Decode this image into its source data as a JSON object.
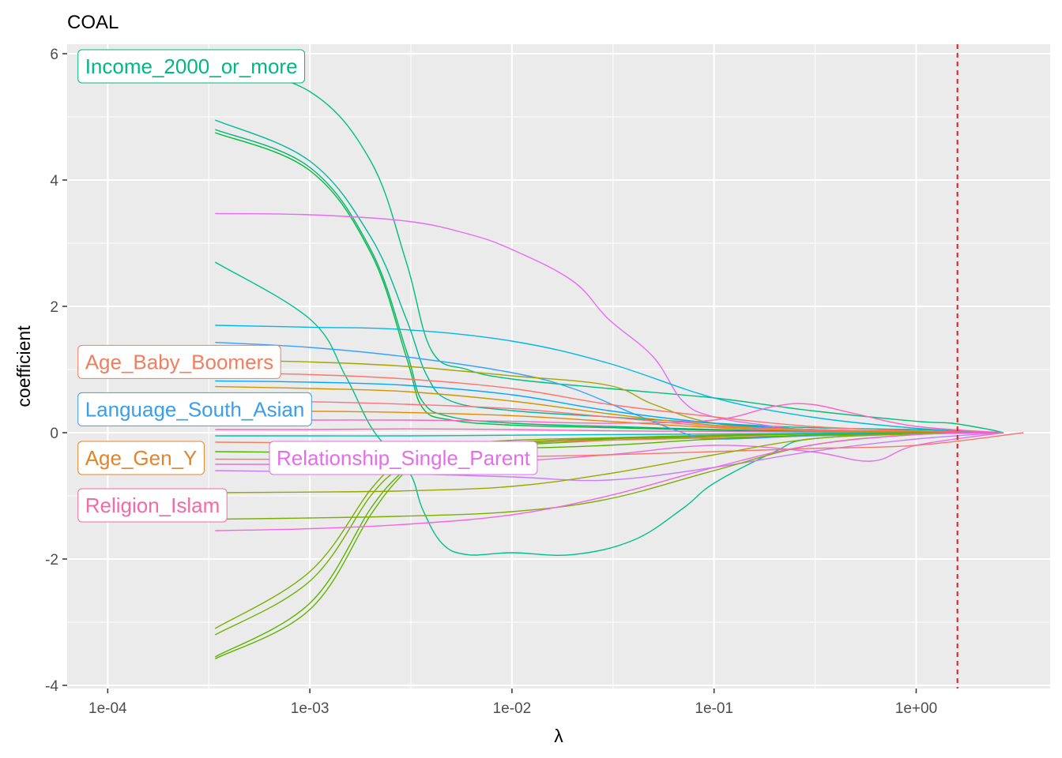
{
  "chart_data": {
    "type": "line",
    "title": "COAL",
    "xlabel": "λ",
    "ylabel": "coefficient",
    "x_scale": "log10",
    "xlim": [
      6.3e-05,
      4.6
    ],
    "ylim": [
      -4.05,
      6.15
    ],
    "x_ticks": [
      {
        "value": 0.0001,
        "label": "1e-04"
      },
      {
        "value": 0.001,
        "label": "1e-03"
      },
      {
        "value": 0.01,
        "label": "1e-02"
      },
      {
        "value": 0.1,
        "label": "1e-01"
      },
      {
        "value": 1,
        "label": "1e+00"
      }
    ],
    "y_ticks": [
      {
        "value": -4,
        "label": "-4"
      },
      {
        "value": -2,
        "label": "-2"
      },
      {
        "value": 0,
        "label": "0"
      },
      {
        "value": 2,
        "label": "2"
      },
      {
        "value": 4,
        "label": "4"
      },
      {
        "value": 6,
        "label": "6"
      }
    ],
    "grid": true,
    "legend": "none",
    "reference_line": {
      "x": 1.6,
      "color": "#e41a1c",
      "style": "dashed"
    },
    "labels": [
      {
        "text": "Income_2000_or_more",
        "color": "#00b881",
        "x": 7e-05,
        "y": 5.8
      },
      {
        "text": "Age_Baby_Boomers",
        "color": "#f17e5e",
        "x": 7e-05,
        "y": 1.12
      },
      {
        "text": "Language_South_Asian",
        "color": "#3a9ee8",
        "x": 7e-05,
        "y": 0.37
      },
      {
        "text": "Age_Gen_Y",
        "color": "#e2842a",
        "x": 7e-05,
        "y": -0.4
      },
      {
        "text": "Relationship_Single_Parent",
        "color": "#e46ee8",
        "x": 0.00062,
        "y": -0.4
      },
      {
        "text": "Religion_Islam",
        "color": "#f46aa4",
        "x": 7e-05,
        "y": -1.15
      }
    ],
    "series": [
      {
        "color": "#00bf7d",
        "x": [
          0.00034,
          0.001,
          0.002,
          0.003,
          0.004,
          0.006,
          0.01,
          0.03,
          0.1,
          0.3,
          1,
          1.5,
          2.3,
          2.7
        ],
        "values": [
          5.85,
          5.4,
          4.3,
          2.7,
          1.3,
          1.0,
          0.85,
          0.7,
          0.55,
          0.35,
          0.18,
          0.15,
          0.05,
          0
        ]
      },
      {
        "color": "#00b895",
        "x": [
          0.00034,
          0.001,
          0.002,
          0.003,
          0.0038,
          0.005,
          0.01,
          0.03,
          0.1,
          0.3,
          1,
          1.5,
          2.3,
          2.7
        ],
        "values": [
          4.95,
          4.3,
          3.1,
          1.8,
          0.9,
          0.5,
          0.35,
          0.25,
          0.15,
          0.08,
          0.05,
          0.03,
          0.01,
          0
        ]
      },
      {
        "color": "#00b47a",
        "x": [
          0.00034,
          0.001,
          0.002,
          0.003,
          0.0036,
          0.005,
          0.01,
          0.03,
          0.1,
          0.3,
          1,
          2.3,
          2.7
        ],
        "values": [
          4.8,
          4.2,
          2.9,
          1.3,
          0.5,
          0.25,
          0.15,
          0.1,
          0.05,
          0.02,
          0.01,
          0,
          0
        ]
      },
      {
        "color": "#00ba38",
        "x": [
          0.00034,
          0.001,
          0.002,
          0.003,
          0.0036,
          0.005,
          0.01,
          0.03,
          0.1,
          0.3,
          1,
          2.3,
          2.7
        ],
        "values": [
          4.75,
          4.15,
          2.85,
          1.2,
          0.4,
          0.2,
          0.12,
          0.08,
          0.04,
          0.02,
          0.01,
          0,
          0
        ]
      },
      {
        "color": "#00c08b",
        "x": [
          0.00034,
          0.001,
          0.0015,
          0.002,
          0.0026,
          0.0032,
          0.0036,
          0.0045,
          0.006,
          0.01,
          0.02,
          0.04,
          0.07,
          0.1,
          0.2,
          0.3,
          1,
          2.7
        ],
        "values": [
          2.7,
          1.8,
          0.9,
          0.1,
          -0.35,
          -0.7,
          -1.2,
          -1.75,
          -1.93,
          -1.9,
          -1.93,
          -1.7,
          -1.2,
          -0.8,
          -0.3,
          -0.1,
          -0.02,
          0
        ]
      },
      {
        "color": "#7cae00",
        "x": [
          0.00034,
          0.001,
          0.002,
          0.0028,
          0.0035,
          0.005,
          0.01,
          0.03,
          0.1,
          0.3,
          1,
          2.7
        ],
        "values": [
          -3.1,
          -2.2,
          -0.9,
          -0.45,
          -0.3,
          -0.2,
          -0.12,
          -0.08,
          -0.04,
          -0.02,
          -0.01,
          0
        ]
      },
      {
        "color": "#6fb000",
        "x": [
          0.00034,
          0.001,
          0.002,
          0.0028,
          0.0035,
          0.005,
          0.01,
          0.03,
          0.1,
          0.3,
          1,
          2.7
        ],
        "values": [
          -3.2,
          -2.35,
          -1.0,
          -0.55,
          -0.35,
          -0.22,
          -0.15,
          -0.09,
          -0.05,
          -0.02,
          -0.01,
          0
        ]
      },
      {
        "color": "#5bb300",
        "x": [
          0.00034,
          0.001,
          0.002,
          0.0028,
          0.0035,
          0.005,
          0.01,
          0.03,
          0.1,
          0.3,
          1,
          2.7
        ],
        "values": [
          -3.55,
          -2.7,
          -1.2,
          -0.65,
          -0.4,
          -0.25,
          -0.18,
          -0.1,
          -0.05,
          -0.02,
          -0.01,
          0
        ]
      },
      {
        "color": "#64b200",
        "x": [
          0.00034,
          0.001,
          0.002,
          0.0028,
          0.0035,
          0.005,
          0.01,
          0.03,
          0.1,
          0.3,
          1,
          2.7
        ],
        "values": [
          -3.58,
          -2.8,
          -1.3,
          -0.7,
          -0.45,
          -0.28,
          -0.2,
          -0.12,
          -0.06,
          -0.02,
          -0.01,
          0
        ]
      },
      {
        "color": "#e76bf3",
        "x": [
          0.00034,
          0.001,
          0.003,
          0.006,
          0.01,
          0.02,
          0.03,
          0.05,
          0.07,
          0.1,
          0.2,
          0.3,
          1,
          2.7
        ],
        "values": [
          3.47,
          3.45,
          3.35,
          3.15,
          2.9,
          2.4,
          1.8,
          1.2,
          0.5,
          0.25,
          0.1,
          0.05,
          0.02,
          0
        ]
      },
      {
        "color": "#00b8e7",
        "x": [
          0.00034,
          0.001,
          0.003,
          0.01,
          0.03,
          0.1,
          0.3,
          1,
          2.7
        ],
        "values": [
          1.7,
          1.67,
          1.63,
          1.45,
          1.1,
          0.55,
          0.25,
          0.07,
          0
        ]
      },
      {
        "color": "#35a2ff",
        "x": [
          0.00034,
          0.001,
          0.003,
          0.01,
          0.02,
          0.04,
          0.07,
          0.1,
          0.3,
          1,
          2.7
        ],
        "values": [
          1.43,
          1.35,
          1.2,
          0.95,
          0.7,
          0.3,
          0.0,
          -0.1,
          -0.05,
          -0.02,
          0
        ]
      },
      {
        "color": "#a3a500",
        "x": [
          0.00034,
          0.001,
          0.003,
          0.01,
          0.03,
          0.05,
          0.1,
          0.3,
          1,
          2.7
        ],
        "values": [
          1.15,
          1.12,
          1.05,
          0.9,
          0.75,
          0.45,
          0.15,
          0.05,
          0.02,
          0
        ]
      },
      {
        "color": "#f8766d",
        "x": [
          0.00034,
          0.001,
          0.003,
          0.01,
          0.03,
          0.1,
          0.3,
          1,
          2.7
        ],
        "values": [
          0.95,
          0.92,
          0.85,
          0.7,
          0.45,
          0.25,
          0.1,
          0.03,
          0
        ]
      },
      {
        "color": "#00a9ff",
        "x": [
          0.00034,
          0.001,
          0.003,
          0.01,
          0.03,
          0.1,
          0.3,
          1,
          2.7
        ],
        "values": [
          0.82,
          0.8,
          0.75,
          0.6,
          0.35,
          0.15,
          0.05,
          0.01,
          0
        ]
      },
      {
        "color": "#c99800",
        "x": [
          0.00034,
          0.001,
          0.003,
          0.01,
          0.03,
          0.1,
          0.3,
          1,
          2.7
        ],
        "values": [
          0.73,
          0.7,
          0.65,
          0.5,
          0.3,
          0.12,
          0.05,
          0.01,
          0
        ]
      },
      {
        "color": "#fc717f",
        "x": [
          0.00034,
          0.001,
          0.003,
          0.01,
          0.03,
          0.1,
          0.3,
          1,
          2.7
        ],
        "values": [
          0.5,
          0.49,
          0.45,
          0.38,
          0.25,
          0.1,
          0.05,
          0.01,
          0
        ]
      },
      {
        "color": "#e58700",
        "x": [
          0.00034,
          0.001,
          0.003,
          0.01,
          0.03,
          0.1,
          0.3,
          1,
          2.7
        ],
        "values": [
          0.35,
          0.34,
          0.32,
          0.27,
          0.18,
          0.08,
          0.03,
          0.01,
          0
        ]
      },
      {
        "color": "#ff61c3",
        "x": [
          0.00034,
          0.001,
          0.003,
          0.01,
          0.03,
          0.1,
          0.2,
          0.3,
          0.5,
          1,
          2.7
        ],
        "values": [
          0.2,
          0.2,
          0.2,
          0.18,
          0.15,
          0.2,
          0.42,
          0.45,
          0.3,
          0.1,
          0
        ]
      },
      {
        "color": "#ff62bc",
        "x": [
          0.00034,
          0.001,
          0.003,
          0.01,
          0.03,
          0.1,
          0.3,
          1,
          2.7
        ],
        "values": [
          0.05,
          0.05,
          0.06,
          0.05,
          0.03,
          0.02,
          0.01,
          0.0,
          0
        ]
      },
      {
        "color": "#00bfc4",
        "x": [
          0.00034,
          0.001,
          0.003,
          0.01,
          0.03,
          0.1,
          0.3,
          1,
          2.7
        ],
        "values": [
          -0.05,
          -0.05,
          -0.05,
          -0.04,
          -0.03,
          -0.02,
          -0.01,
          0.0,
          0
        ]
      },
      {
        "color": "#f17e5e",
        "x": [
          0.00034,
          0.001,
          0.003,
          0.01,
          0.03,
          0.1,
          0.3,
          1,
          2.7
        ],
        "values": [
          -0.15,
          -0.16,
          -0.17,
          -0.15,
          -0.12,
          -0.08,
          -0.04,
          -0.01,
          0
        ]
      },
      {
        "color": "#53b400",
        "x": [
          0.00034,
          0.001,
          0.003,
          0.01,
          0.03,
          0.1,
          0.3,
          1,
          2.7
        ],
        "values": [
          -0.3,
          -0.31,
          -0.3,
          -0.25,
          -0.2,
          -0.1,
          -0.04,
          -0.01,
          0
        ]
      },
      {
        "color": "#e46ee8",
        "x": [
          0.00034,
          0.001,
          0.003,
          0.01,
          0.03,
          0.1,
          0.3,
          0.6,
          1,
          2.7
        ],
        "values": [
          -0.5,
          -0.5,
          -0.48,
          -0.45,
          -0.35,
          -0.2,
          -0.3,
          -0.45,
          -0.2,
          0
        ]
      },
      {
        "color": "#c77cff",
        "x": [
          0.00034,
          0.001,
          0.003,
          0.01,
          0.03,
          0.1,
          0.3,
          1,
          2.7
        ],
        "values": [
          -0.6,
          -0.62,
          -0.65,
          -0.7,
          -0.75,
          -0.55,
          -0.3,
          -0.1,
          0
        ]
      },
      {
        "color": "#f8766d",
        "x": [
          0.00034,
          0.001,
          0.003,
          0.01,
          0.03,
          0.1,
          0.3,
          1,
          3.4
        ],
        "values": [
          -0.42,
          -0.42,
          -0.4,
          -0.38,
          -0.35,
          -0.3,
          -0.25,
          -0.2,
          0
        ]
      },
      {
        "color": "#99a800",
        "x": [
          0.00034,
          0.001,
          0.003,
          0.01,
          0.03,
          0.1,
          0.3,
          1,
          2.7
        ],
        "values": [
          -0.95,
          -0.94,
          -0.92,
          -0.85,
          -0.65,
          -0.35,
          -0.1,
          -0.02,
          0
        ]
      },
      {
        "color": "#7cae00",
        "x": [
          0.00034,
          0.001,
          0.003,
          0.01,
          0.03,
          0.1,
          0.3,
          1,
          2.7
        ],
        "values": [
          -1.37,
          -1.35,
          -1.32,
          -1.25,
          -1.05,
          -0.6,
          -0.2,
          -0.03,
          0
        ]
      },
      {
        "color": "#f564e3",
        "x": [
          0.00034,
          0.001,
          0.003,
          0.01,
          0.03,
          0.1,
          0.3,
          1,
          2.7
        ],
        "values": [
          -1.55,
          -1.52,
          -1.45,
          -1.3,
          -1.0,
          -0.55,
          -0.2,
          -0.03,
          0
        ]
      }
    ]
  }
}
